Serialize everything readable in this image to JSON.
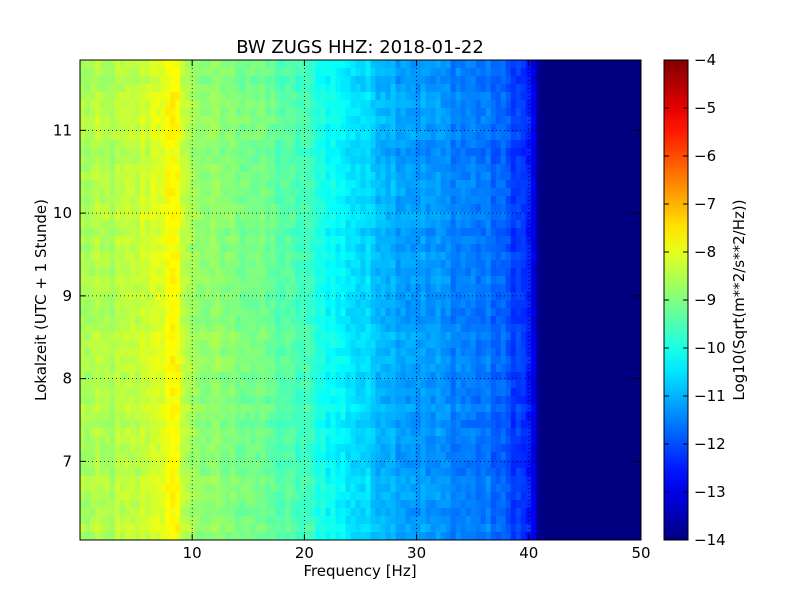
{
  "chart_data": {
    "type": "heatmap",
    "title": "BW ZUGS HHZ: 2018-01-22",
    "xlabel": "Frequency [Hz]",
    "ylabel": "Lokalzeit (UTC + 1 Stunde)",
    "xlim": [
      0,
      50
    ],
    "ylim": [
      11.85,
      6.05
    ],
    "xticks": [
      10,
      20,
      30,
      40,
      50
    ],
    "yticks": [
      7,
      8,
      9,
      10,
      11
    ],
    "grid": true,
    "colormap": "jet",
    "colorbar": {
      "label": "Log10(Sqrt(m**2/s**2/Hz))",
      "range": [
        -14,
        -4
      ],
      "ticks": [
        -14,
        -13,
        -12,
        -11,
        -10,
        -9,
        -8,
        -7,
        -6,
        -5,
        -4
      ]
    },
    "z_profile_by_frequency": {
      "frequency_hz": [
        0,
        2,
        5,
        7,
        8.5,
        10,
        12,
        15,
        18,
        20,
        22,
        25,
        28,
        30,
        33,
        36,
        38,
        40,
        41,
        50
      ],
      "log10_amplitude": [
        -8.6,
        -8.6,
        -8.4,
        -8.0,
        -7.8,
        -8.7,
        -8.9,
        -9.0,
        -9.4,
        -9.6,
        -10.1,
        -10.6,
        -11.0,
        -11.2,
        -11.4,
        -11.6,
        -11.9,
        -12.4,
        -14.0,
        -14.0
      ]
    }
  }
}
